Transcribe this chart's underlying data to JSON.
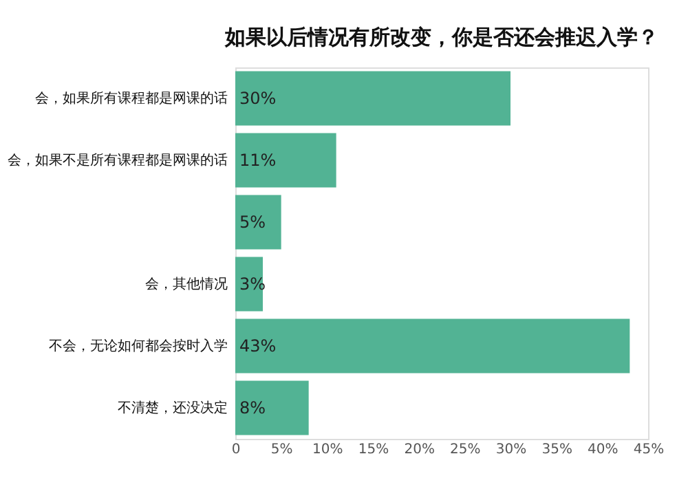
{
  "chart_data": {
    "type": "bar",
    "orientation": "horizontal",
    "title": "如果以后情况有所改变，你是否还会推迟入学？",
    "categories": [
      "会，如果所有课程都是网课的话",
      "会，如果不是所有课程都是网课的话",
      null,
      "会，其他情况",
      "不会，无论如何都会按时入学",
      "不清楚，还没决定"
    ],
    "values": [
      30,
      11,
      5,
      3,
      43,
      8
    ],
    "color": "#52b394",
    "value_labels": [
      "30%",
      "11%",
      "5%",
      "3%",
      "43%",
      "8%"
    ],
    "xlim": [
      0,
      45
    ],
    "xticks": [
      0,
      {
        "value": 5,
        "label": "5%"
      },
      {
        "value": 10,
        "label": "10%"
      },
      {
        "value": 15,
        "label": "15%"
      },
      {
        "value": 20,
        "label": "20%"
      },
      {
        "value": 25,
        "label": "25%"
      },
      {
        "value": 30,
        "label": "30%"
      },
      {
        "value": 35,
        "label": "35%"
      },
      {
        "value": 40,
        "label": "40%"
      },
      {
        "value": 45,
        "label": "45%"
      }
    ],
    "grid": false
  }
}
